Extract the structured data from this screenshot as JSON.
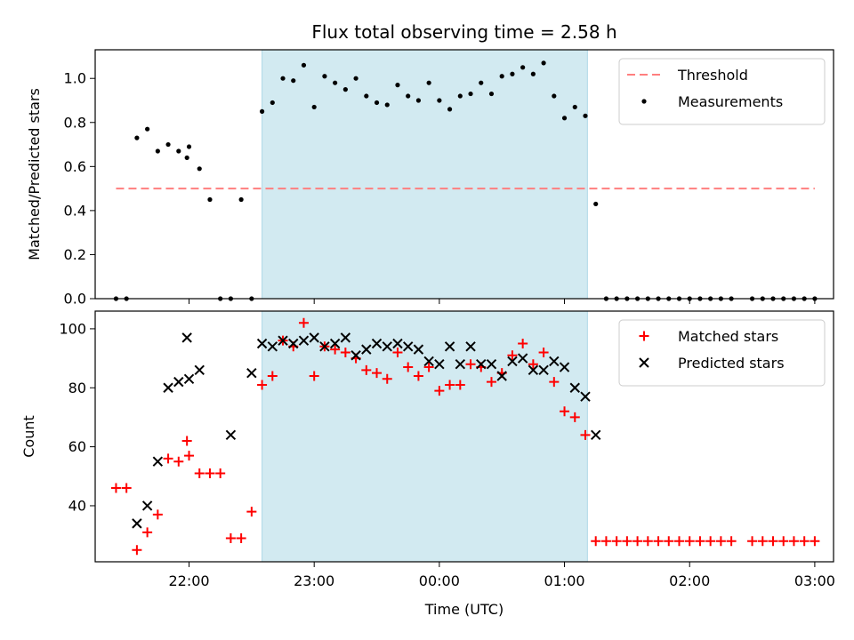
{
  "title": "Flux total observing time = 2.58 h",
  "colors": {
    "threshold": "#ff7f7f",
    "measurement": "#000000",
    "matched": "#ff0000",
    "predicted": "#000000",
    "span": "#add8e6"
  },
  "chart_data": [
    {
      "type": "scatter",
      "panel": "top",
      "title": "Flux total observing time = 2.58 h",
      "xlabel": "",
      "ylabel": "Matched/Predicted stars",
      "ylim": [
        0,
        1.13
      ],
      "yticks": [
        0.0,
        0.2,
        0.4,
        0.6,
        0.8,
        1.0
      ],
      "ytick_labels": [
        "0.0",
        "0.2",
        "0.4",
        "0.6",
        "0.8",
        "1.0"
      ],
      "shaded_span": [
        "22:35",
        "01:11"
      ],
      "legend_position": "upper right",
      "threshold": {
        "name": "Threshold",
        "y": 0.5,
        "x_range": [
          "21:25",
          "03:00"
        ],
        "style": "dashed"
      },
      "series": [
        {
          "name": "Measurements",
          "marker": "dot",
          "points": [
            [
              "21:25",
              0.0
            ],
            [
              "21:30",
              0.0
            ],
            [
              "21:35",
              0.73
            ],
            [
              "21:40",
              0.77
            ],
            [
              "21:45",
              0.67
            ],
            [
              "21:50",
              0.7
            ],
            [
              "21:55",
              0.67
            ],
            [
              "21:59",
              0.64
            ],
            [
              "22:00",
              0.69
            ],
            [
              "22:05",
              0.59
            ],
            [
              "22:10",
              0.45
            ],
            [
              "22:15",
              0.0
            ],
            [
              "22:20",
              0.0
            ],
            [
              "22:25",
              0.45
            ],
            [
              "22:30",
              0.0
            ],
            [
              "22:35",
              0.85
            ],
            [
              "22:40",
              0.89
            ],
            [
              "22:45",
              1.0
            ],
            [
              "22:50",
              0.99
            ],
            [
              "22:55",
              1.06
            ],
            [
              "23:00",
              0.87
            ],
            [
              "23:05",
              1.01
            ],
            [
              "23:10",
              0.98
            ],
            [
              "23:15",
              0.95
            ],
            [
              "23:20",
              1.0
            ],
            [
              "23:25",
              0.92
            ],
            [
              "23:30",
              0.89
            ],
            [
              "23:35",
              0.88
            ],
            [
              "23:40",
              0.97
            ],
            [
              "23:45",
              0.92
            ],
            [
              "23:50",
              0.9
            ],
            [
              "23:55",
              0.98
            ],
            [
              "00:00",
              0.9
            ],
            [
              "00:05",
              0.86
            ],
            [
              "00:10",
              0.92
            ],
            [
              "00:15",
              0.93
            ],
            [
              "00:20",
              0.98
            ],
            [
              "00:25",
              0.93
            ],
            [
              "00:30",
              1.01
            ],
            [
              "00:35",
              1.02
            ],
            [
              "00:40",
              1.05
            ],
            [
              "00:45",
              1.02
            ],
            [
              "00:50",
              1.07
            ],
            [
              "00:55",
              0.92
            ],
            [
              "01:00",
              0.82
            ],
            [
              "01:05",
              0.87
            ],
            [
              "01:10",
              0.83
            ],
            [
              "01:15",
              0.43
            ],
            [
              "01:20",
              0.0
            ],
            [
              "01:25",
              0.0
            ],
            [
              "01:30",
              0.0
            ],
            [
              "01:35",
              0.0
            ],
            [
              "01:40",
              0.0
            ],
            [
              "01:45",
              0.0
            ],
            [
              "01:50",
              0.0
            ],
            [
              "01:55",
              0.0
            ],
            [
              "02:00",
              0.0
            ],
            [
              "02:05",
              0.0
            ],
            [
              "02:10",
              0.0
            ],
            [
              "02:15",
              0.0
            ],
            [
              "02:20",
              0.0
            ],
            [
              "02:30",
              0.0
            ],
            [
              "02:35",
              0.0
            ],
            [
              "02:40",
              0.0
            ],
            [
              "02:45",
              0.0
            ],
            [
              "02:50",
              0.0
            ],
            [
              "02:55",
              0.0
            ],
            [
              "03:00",
              0.0
            ]
          ]
        }
      ]
    },
    {
      "type": "scatter",
      "panel": "bottom",
      "xlabel": "Time (UTC)",
      "ylabel": "Count",
      "ylim": [
        21,
        106
      ],
      "yticks": [
        40,
        60,
        80,
        100
      ],
      "ytick_labels": [
        "40",
        "60",
        "80",
        "100"
      ],
      "xlim": [
        "21:15",
        "03:09"
      ],
      "xticks": [
        "22:00",
        "23:00",
        "00:00",
        "01:00",
        "02:00",
        "03:00"
      ],
      "xtick_labels": [
        "22:00",
        "23:00",
        "00:00",
        "01:00",
        "02:00",
        "03:00"
      ],
      "shaded_span": [
        "22:35",
        "01:11"
      ],
      "legend_position": "upper right",
      "series": [
        {
          "name": "Matched stars",
          "marker": "plus",
          "points": [
            [
              "21:25",
              46
            ],
            [
              "21:30",
              46
            ],
            [
              "21:35",
              25
            ],
            [
              "21:40",
              31
            ],
            [
              "21:45",
              37
            ],
            [
              "21:50",
              56
            ],
            [
              "21:55",
              55
            ],
            [
              "21:59",
              62
            ],
            [
              "22:00",
              57
            ],
            [
              "22:05",
              51
            ],
            [
              "22:10",
              51
            ],
            [
              "22:15",
              51
            ],
            [
              "22:20",
              29
            ],
            [
              "22:25",
              29
            ],
            [
              "22:30",
              38
            ],
            [
              "22:35",
              81
            ],
            [
              "22:40",
              84
            ],
            [
              "22:45",
              96
            ],
            [
              "22:50",
              94
            ],
            [
              "22:55",
              102
            ],
            [
              "23:00",
              84
            ],
            [
              "23:05",
              94
            ],
            [
              "23:10",
              93
            ],
            [
              "23:15",
              92
            ],
            [
              "23:20",
              90
            ],
            [
              "23:25",
              86
            ],
            [
              "23:30",
              85
            ],
            [
              "23:35",
              83
            ],
            [
              "23:40",
              92
            ],
            [
              "23:45",
              87
            ],
            [
              "23:50",
              84
            ],
            [
              "23:55",
              87
            ],
            [
              "00:00",
              79
            ],
            [
              "00:05",
              81
            ],
            [
              "00:10",
              81
            ],
            [
              "00:15",
              88
            ],
            [
              "00:20",
              87
            ],
            [
              "00:25",
              82
            ],
            [
              "00:30",
              85
            ],
            [
              "00:35",
              91
            ],
            [
              "00:40",
              95
            ],
            [
              "00:45",
              88
            ],
            [
              "00:50",
              92
            ],
            [
              "00:55",
              82
            ],
            [
              "01:00",
              72
            ],
            [
              "01:05",
              70
            ],
            [
              "01:10",
              64
            ],
            [
              "01:15",
              28
            ],
            [
              "01:20",
              28
            ],
            [
              "01:25",
              28
            ],
            [
              "01:30",
              28
            ],
            [
              "01:35",
              28
            ],
            [
              "01:40",
              28
            ],
            [
              "01:45",
              28
            ],
            [
              "01:50",
              28
            ],
            [
              "01:55",
              28
            ],
            [
              "02:00",
              28
            ],
            [
              "02:05",
              28
            ],
            [
              "02:10",
              28
            ],
            [
              "02:15",
              28
            ],
            [
              "02:20",
              28
            ],
            [
              "02:30",
              28
            ],
            [
              "02:35",
              28
            ],
            [
              "02:40",
              28
            ],
            [
              "02:45",
              28
            ],
            [
              "02:50",
              28
            ],
            [
              "02:55",
              28
            ],
            [
              "03:00",
              28
            ]
          ]
        },
        {
          "name": "Predicted stars",
          "marker": "x",
          "points": [
            [
              "21:35",
              34
            ],
            [
              "21:40",
              40
            ],
            [
              "21:45",
              55
            ],
            [
              "21:50",
              80
            ],
            [
              "21:55",
              82
            ],
            [
              "21:59",
              97
            ],
            [
              "22:00",
              83
            ],
            [
              "22:05",
              86
            ],
            [
              "22:20",
              64
            ],
            [
              "22:30",
              85
            ],
            [
              "22:35",
              95
            ],
            [
              "22:40",
              94
            ],
            [
              "22:45",
              96
            ],
            [
              "22:50",
              95
            ],
            [
              "22:55",
              96
            ],
            [
              "23:00",
              97
            ],
            [
              "23:05",
              94
            ],
            [
              "23:10",
              95
            ],
            [
              "23:15",
              97
            ],
            [
              "23:20",
              91
            ],
            [
              "23:25",
              93
            ],
            [
              "23:30",
              95
            ],
            [
              "23:35",
              94
            ],
            [
              "23:40",
              95
            ],
            [
              "23:45",
              94
            ],
            [
              "23:50",
              93
            ],
            [
              "23:55",
              89
            ],
            [
              "00:00",
              88
            ],
            [
              "00:05",
              94
            ],
            [
              "00:10",
              88
            ],
            [
              "00:15",
              94
            ],
            [
              "00:20",
              88
            ],
            [
              "00:25",
              88
            ],
            [
              "00:30",
              84
            ],
            [
              "00:35",
              89
            ],
            [
              "00:40",
              90
            ],
            [
              "00:45",
              86
            ],
            [
              "00:50",
              86
            ],
            [
              "00:55",
              89
            ],
            [
              "01:00",
              87
            ],
            [
              "01:05",
              80
            ],
            [
              "01:10",
              77
            ],
            [
              "01:15",
              64
            ]
          ]
        }
      ]
    }
  ]
}
